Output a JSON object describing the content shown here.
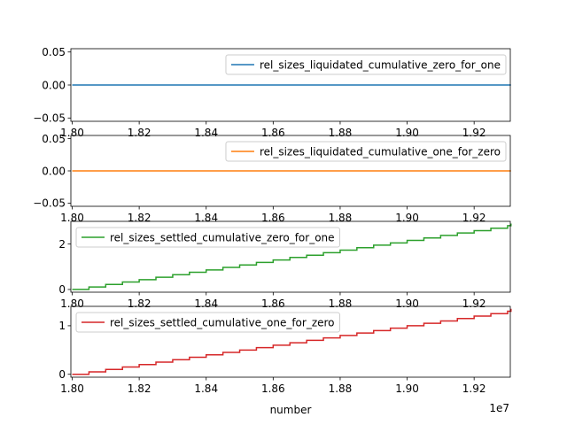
{
  "figure": {
    "xlabel": "number",
    "x_offset_label": "1e7",
    "x_ticks": [
      "1.80",
      "1.82",
      "1.84",
      "1.86",
      "1.88",
      "1.90",
      "1.92"
    ]
  },
  "chart_data": [
    {
      "type": "line",
      "legend_position": "upper right",
      "x_range": [
        17996000,
        19308000
      ],
      "ylim": [
        -0.055,
        0.055
      ],
      "y_ticks": [
        "0.05",
        "0.00",
        "−0.05"
      ],
      "series": [
        {
          "name": "rel_sizes_liquidated_cumulative_zero_for_one",
          "color": "#1f77b4",
          "x": [
            18000000,
            19310000
          ],
          "y": [
            0,
            0
          ]
        }
      ]
    },
    {
      "type": "line",
      "legend_position": "upper right",
      "x_range": [
        17996000,
        19308000
      ],
      "ylim": [
        -0.055,
        0.055
      ],
      "y_ticks": [
        "0.05",
        "0.00",
        "−0.05"
      ],
      "series": [
        {
          "name": "rel_sizes_liquidated_cumulative_one_for_zero",
          "color": "#ff7f0e",
          "x": [
            18000000,
            19310000
          ],
          "y": [
            0,
            0
          ]
        }
      ]
    },
    {
      "type": "line",
      "legend_position": "upper left",
      "x_range": [
        17996000,
        19308000
      ],
      "ylim": [
        -0.12,
        3.0
      ],
      "y_ticks": [
        "0",
        "2"
      ],
      "series": [
        {
          "name": "rel_sizes_settled_cumulative_zero_for_one",
          "color": "#2ca02c",
          "step": "post",
          "x": [
            18000000,
            18050000,
            18100000,
            18150000,
            18200000,
            18250000,
            18300000,
            18350000,
            18400000,
            18450000,
            18500000,
            18550000,
            18600000,
            18650000,
            18700000,
            18750000,
            18800000,
            18850000,
            18900000,
            18950000,
            19000000,
            19050000,
            19100000,
            19150000,
            19200000,
            19250000,
            19300000,
            19310000
          ],
          "y": [
            0.0,
            0.11,
            0.22,
            0.33,
            0.43,
            0.54,
            0.65,
            0.76,
            0.86,
            0.97,
            1.08,
            1.19,
            1.3,
            1.41,
            1.51,
            1.62,
            1.73,
            1.84,
            1.95,
            2.05,
            2.16,
            2.27,
            2.38,
            2.49,
            2.59,
            2.7,
            2.81,
            2.9
          ]
        }
      ]
    },
    {
      "type": "line",
      "legend_position": "upper left",
      "x_range": [
        17996000,
        19308000
      ],
      "ylim": [
        -0.06,
        1.4
      ],
      "y_ticks": [
        "0",
        "1"
      ],
      "series": [
        {
          "name": "rel_sizes_settled_cumulative_one_for_zero",
          "color": "#d62728",
          "step": "post",
          "x": [
            18000000,
            18050000,
            18100000,
            18150000,
            18200000,
            18250000,
            18300000,
            18350000,
            18400000,
            18450000,
            18500000,
            18550000,
            18600000,
            18650000,
            18700000,
            18750000,
            18800000,
            18850000,
            18900000,
            18950000,
            19000000,
            19050000,
            19100000,
            19150000,
            19200000,
            19250000,
            19300000,
            19310000
          ],
          "y": [
            0.0,
            0.05,
            0.1,
            0.15,
            0.2,
            0.25,
            0.3,
            0.35,
            0.4,
            0.45,
            0.5,
            0.55,
            0.6,
            0.65,
            0.7,
            0.75,
            0.8,
            0.85,
            0.9,
            0.95,
            1.0,
            1.05,
            1.1,
            1.15,
            1.2,
            1.25,
            1.3,
            1.35
          ]
        }
      ]
    }
  ]
}
